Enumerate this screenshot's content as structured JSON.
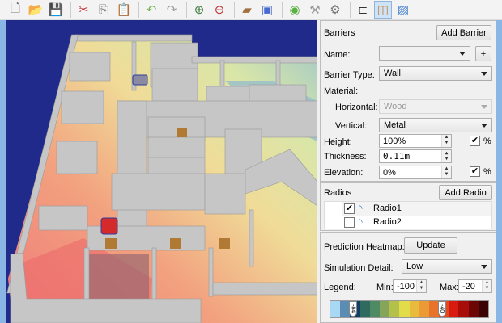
{
  "toolbar": {
    "buttons": [
      {
        "name": "new",
        "icon": "new-document-icon",
        "glyph": "🗋"
      },
      {
        "name": "open",
        "icon": "open-folder-icon",
        "glyph": "📂"
      },
      {
        "name": "save",
        "icon": "save-disk-icon",
        "glyph": "💾"
      },
      {
        "name": "cut",
        "icon": "scissors-icon",
        "glyph": "✂"
      },
      {
        "name": "copy",
        "icon": "copy-icon",
        "glyph": "⎘"
      },
      {
        "name": "paste",
        "icon": "paste-icon",
        "glyph": "📋"
      },
      {
        "name": "undo",
        "icon": "undo-icon",
        "glyph": "↶"
      },
      {
        "name": "redo",
        "icon": "redo-icon",
        "glyph": "↷"
      },
      {
        "name": "zoom-in",
        "icon": "zoom-in-icon",
        "glyph": "⊕"
      },
      {
        "name": "zoom-out",
        "icon": "zoom-out-icon",
        "glyph": "⊖"
      },
      {
        "name": "add-barrier",
        "icon": "add-wall-icon",
        "glyph": "▰"
      },
      {
        "name": "add-region",
        "icon": "add-region-icon",
        "glyph": "▣"
      },
      {
        "name": "add-radio",
        "icon": "wifi-icon",
        "glyph": "◉"
      },
      {
        "name": "tools",
        "icon": "tools-icon",
        "glyph": "⚒"
      },
      {
        "name": "settings",
        "icon": "gear-icon",
        "glyph": "⚙"
      },
      {
        "name": "route",
        "icon": "route-icon",
        "glyph": "⊏"
      },
      {
        "name": "floorplan",
        "icon": "floorplan-icon",
        "glyph": "◫",
        "active": true
      },
      {
        "name": "heatmap",
        "icon": "heatmap-chart-icon",
        "glyph": "▨"
      }
    ]
  },
  "barriers": {
    "title": "Barriers",
    "add_label": "Add Barrier",
    "name_label": "Name:",
    "name_value": "",
    "plus_label": "+",
    "type_label": "Barrier Type:",
    "type_value": "Wall",
    "material_label": "Material:",
    "horizontal_label": "Horizontal:",
    "horizontal_value": "Wood",
    "vertical_label": "Vertical:",
    "vertical_value": "Metal",
    "height_label": "Height:",
    "height_value": "100%",
    "height_pct_checked": true,
    "thickness_label": "Thickness:",
    "thickness_value": "0.11m",
    "elevation_label": "Elevation:",
    "elevation_value": "0%",
    "elevation_pct_checked": true,
    "pct_label": "%"
  },
  "radios": {
    "title": "Radios",
    "add_label": "Add Radio",
    "items": [
      {
        "label": "Radio1",
        "checked": true
      },
      {
        "label": "Radio2",
        "checked": false
      }
    ]
  },
  "prediction": {
    "heatmap_label": "Prediction Heatmap:",
    "update_label": "Update",
    "detail_label": "Simulation Detail:",
    "detail_value": "Low",
    "legend_label": "Legend:",
    "min_label": "Min:",
    "min_value": "-100",
    "max_label": "Max:",
    "max_value": "-20",
    "legend_colors": [
      "#a8d8f4",
      "#5b8db4",
      "#0e3f67",
      "#2f6a5f",
      "#4e8a63",
      "#86a55a",
      "#b3c04a",
      "#e2dc4a",
      "#e9bb3c",
      "#ec9a35",
      "#e8732a",
      "#e4481f",
      "#d81a10",
      "#a80d0a",
      "#6d0505",
      "#3a0202"
    ],
    "markers": [
      "-84",
      "-40"
    ]
  }
}
